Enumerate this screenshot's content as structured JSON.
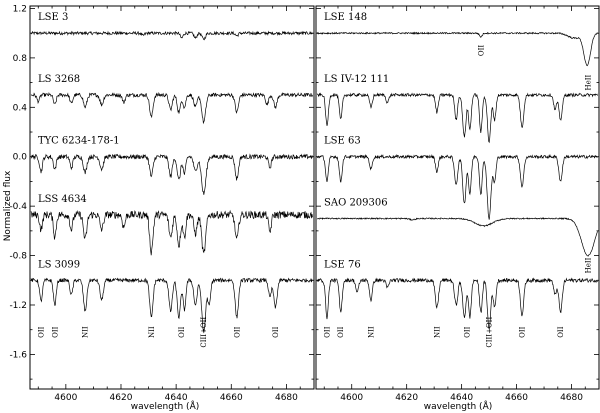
{
  "chart_data": {
    "type": "line",
    "ylabel": "Normalized flux",
    "xlabel": "wavelength (Å)",
    "xlim": [
      4587,
      4690
    ],
    "ylim": [
      -1.9,
      1.2
    ],
    "xticks": [
      4600,
      4620,
      4640,
      4660,
      4680
    ],
    "xtick_labels": [
      "4600",
      "4620",
      "4640",
      "4660",
      "4680"
    ],
    "yticks": [
      1.2,
      0.8,
      0.4,
      0.0,
      -0.4,
      -0.8,
      -1.2,
      -1.6
    ],
    "ytick_labels": [
      "1.2",
      "0.8",
      "0.4",
      "0.0",
      "-0.4",
      "-0.8",
      "-1.2",
      "-1.6"
    ],
    "panels": [
      {
        "name": "left",
        "series": [
          {
            "label": "LSE 3",
            "offset": 1.0,
            "noise": 0.012,
            "lines": [
              [
                4628,
                0.02,
                0.5
              ],
              [
                4642,
                0.04,
                0.5
              ],
              [
                4647,
                0.04,
                0.5
              ],
              [
                4650,
                0.05,
                0.6
              ],
              [
                4662,
                0.02,
                0.5
              ]
            ]
          },
          {
            "label": "LS 3268",
            "offset": 0.5,
            "noise": 0.015,
            "lines": [
              [
                4590,
                0.05,
                0.5
              ],
              [
                4596,
                0.08,
                0.5
              ],
              [
                4602,
                0.07,
                0.5
              ],
              [
                4607,
                0.1,
                0.6
              ],
              [
                4613,
                0.08,
                0.6
              ],
              [
                4621,
                0.06,
                0.5
              ],
              [
                4631,
                0.18,
                0.6
              ],
              [
                4638,
                0.12,
                0.6
              ],
              [
                4641,
                0.14,
                0.6
              ],
              [
                4643,
                0.1,
                0.5
              ],
              [
                4647,
                0.1,
                0.6
              ],
              [
                4650,
                0.22,
                0.7
              ],
              [
                4662,
                0.14,
                0.6
              ],
              [
                4673,
                0.08,
                0.5
              ],
              [
                4676,
                0.1,
                0.6
              ]
            ]
          },
          {
            "label": "TYC 6234-178-1",
            "offset": 0.0,
            "noise": 0.018,
            "lines": [
              [
                4591,
                0.12,
                0.5
              ],
              [
                4596,
                0.1,
                0.5
              ],
              [
                4602,
                0.09,
                0.5
              ],
              [
                4607,
                0.13,
                0.6
              ],
              [
                4613,
                0.1,
                0.6
              ],
              [
                4631,
                0.16,
                0.6
              ],
              [
                4638,
                0.16,
                0.6
              ],
              [
                4641,
                0.19,
                0.6
              ],
              [
                4643,
                0.14,
                0.5
              ],
              [
                4647,
                0.12,
                0.6
              ],
              [
                4650,
                0.3,
                0.8
              ],
              [
                4662,
                0.18,
                0.6
              ],
              [
                4674,
                0.09,
                0.5
              ]
            ]
          },
          {
            "label": "LSS 4634",
            "offset": -0.47,
            "noise": 0.03,
            "lines": [
              [
                4591,
                0.12,
                0.5
              ],
              [
                4596,
                0.18,
                0.5
              ],
              [
                4602,
                0.12,
                0.5
              ],
              [
                4607,
                0.2,
                0.6
              ],
              [
                4613,
                0.12,
                0.6
              ],
              [
                4621,
                0.1,
                0.5
              ],
              [
                4631,
                0.3,
                0.6
              ],
              [
                4638,
                0.18,
                0.6
              ],
              [
                4641,
                0.25,
                0.6
              ],
              [
                4643,
                0.18,
                0.5
              ],
              [
                4647,
                0.15,
                0.6
              ],
              [
                4650,
                0.32,
                0.7
              ],
              [
                4662,
                0.2,
                0.6
              ],
              [
                4674,
                0.14,
                0.5
              ]
            ]
          },
          {
            "label": "LS 3099",
            "offset": -1.0,
            "noise": 0.015,
            "lines": [
              [
                4591,
                0.17,
                0.5
              ],
              [
                4596,
                0.2,
                0.5
              ],
              [
                4602,
                0.12,
                0.5
              ],
              [
                4607,
                0.25,
                0.6
              ],
              [
                4613,
                0.16,
                0.6
              ],
              [
                4631,
                0.3,
                0.6
              ],
              [
                4638,
                0.25,
                0.6
              ],
              [
                4641,
                0.3,
                0.6
              ],
              [
                4643,
                0.24,
                0.5
              ],
              [
                4647,
                0.2,
                0.6
              ],
              [
                4650,
                0.42,
                0.7
              ],
              [
                4652,
                0.2,
                0.5
              ],
              [
                4662,
                0.3,
                0.6
              ],
              [
                4674,
                0.14,
                0.5
              ],
              [
                4676,
                0.22,
                0.6
              ]
            ]
          }
        ],
        "line_labels": [
          {
            "text": "OII",
            "x": 4591
          },
          {
            "text": "OII",
            "x": 4596
          },
          {
            "text": "NII",
            "x": 4607
          },
          {
            "text": "NII",
            "x": 4631
          },
          {
            "text": "OII",
            "x": 4642
          },
          {
            "text": "CIII+OII",
            "x": 4650
          },
          {
            "text": "OII",
            "x": 4662
          },
          {
            "text": "OII",
            "x": 4676
          }
        ]
      },
      {
        "name": "right",
        "series": [
          {
            "label": "LSE 148",
            "offset": 1.0,
            "noise": 0.006,
            "lines": [
              [
                4647,
                0.03,
                0.5
              ],
              [
                4685.7,
                0.26,
                1.2
              ],
              [
                4681,
                0.04,
                2.2
              ]
            ]
          },
          {
            "label": "LS IV-12 111",
            "offset": 0.5,
            "noise": 0.012,
            "lines": [
              [
                4591,
                0.25,
                0.5
              ],
              [
                4596,
                0.2,
                0.5
              ],
              [
                4607,
                0.1,
                0.5
              ],
              [
                4613,
                0.06,
                0.5
              ],
              [
                4631,
                0.14,
                0.5
              ],
              [
                4638,
                0.2,
                0.5
              ],
              [
                4641,
                0.34,
                0.6
              ],
              [
                4643,
                0.28,
                0.5
              ],
              [
                4647,
                0.3,
                0.5
              ],
              [
                4650,
                0.38,
                0.6
              ],
              [
                4652,
                0.2,
                0.5
              ],
              [
                4662,
                0.26,
                0.6
              ],
              [
                4674,
                0.12,
                0.5
              ],
              [
                4676,
                0.2,
                0.6
              ]
            ]
          },
          {
            "label": "LSE 63",
            "offset": 0.0,
            "noise": 0.012,
            "lines": [
              [
                4591,
                0.2,
                0.5
              ],
              [
                4596,
                0.2,
                0.5
              ],
              [
                4607,
                0.1,
                0.5
              ],
              [
                4631,
                0.12,
                0.5
              ],
              [
                4638,
                0.22,
                0.6
              ],
              [
                4641,
                0.38,
                0.6
              ],
              [
                4643,
                0.3,
                0.5
              ],
              [
                4647,
                0.3,
                0.5
              ],
              [
                4650,
                0.5,
                0.7
              ],
              [
                4652,
                0.2,
                0.5
              ],
              [
                4662,
                0.24,
                0.6
              ],
              [
                4676,
                0.2,
                0.6
              ]
            ]
          },
          {
            "label": "SAO 209306",
            "offset": -0.5,
            "noise": 0.005,
            "lines": [
              [
                4648,
                0.06,
                3.2
              ],
              [
                4686,
                0.3,
                2.4
              ],
              [
                4622,
                0.01,
                1.0
              ]
            ]
          },
          {
            "label": "LSE 76",
            "offset": -1.0,
            "noise": 0.015,
            "lines": [
              [
                4591,
                0.3,
                0.5
              ],
              [
                4596,
                0.26,
                0.5
              ],
              [
                4602,
                0.1,
                0.5
              ],
              [
                4607,
                0.16,
                0.5
              ],
              [
                4613,
                0.06,
                0.5
              ],
              [
                4631,
                0.22,
                0.6
              ],
              [
                4638,
                0.2,
                0.6
              ],
              [
                4641,
                0.3,
                0.6
              ],
              [
                4643,
                0.3,
                0.5
              ],
              [
                4647,
                0.26,
                0.5
              ],
              [
                4650,
                0.4,
                0.6
              ],
              [
                4652,
                0.22,
                0.5
              ],
              [
                4662,
                0.28,
                0.6
              ],
              [
                4674,
                0.12,
                0.5
              ],
              [
                4676,
                0.26,
                0.6
              ]
            ]
          }
        ],
        "line_labels": [
          {
            "text": "OII",
            "x": 4647
          },
          {
            "text": "HeII",
            "x": 4686
          },
          {
            "text": "HeII",
            "x": 4686
          },
          {
            "text": "OII",
            "x": 4591
          },
          {
            "text": "OII",
            "x": 4596
          },
          {
            "text": "NII",
            "x": 4607
          },
          {
            "text": "NII",
            "x": 4631
          },
          {
            "text": "OII",
            "x": 4642
          },
          {
            "text": "CIII+OII",
            "x": 4650
          },
          {
            "text": "OII",
            "x": 4662
          },
          {
            "text": "OII",
            "x": 4676
          }
        ]
      }
    ]
  }
}
